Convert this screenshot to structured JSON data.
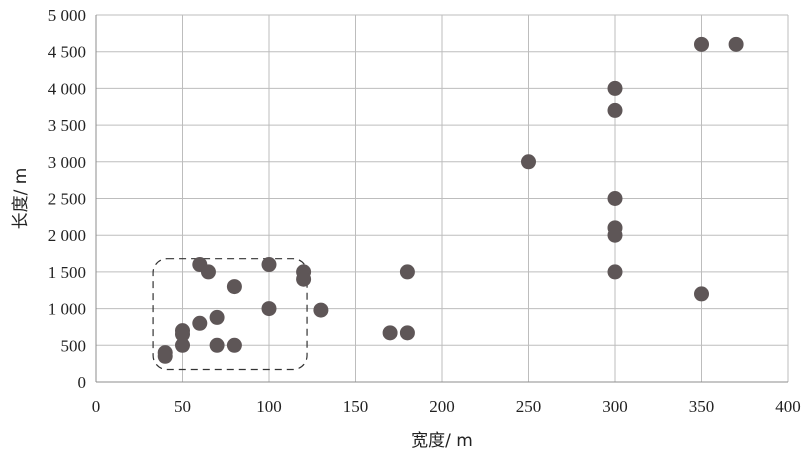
{
  "chart_data": {
    "type": "scatter",
    "title": "",
    "xlabel": "宽度/ m",
    "ylabel": "长度/ m",
    "xlim": [
      0,
      400
    ],
    "ylim": [
      0,
      5000
    ],
    "x_ticks": [
      0,
      50,
      100,
      150,
      200,
      250,
      300,
      350,
      400
    ],
    "y_ticks": [
      0,
      500,
      1000,
      1500,
      2000,
      2500,
      3000,
      3500,
      4000,
      4500,
      5000
    ],
    "x_tick_labels": [
      "0",
      "50",
      "100",
      "150",
      "200",
      "250",
      "300",
      "350",
      "400"
    ],
    "y_tick_labels": [
      "0",
      "500",
      "1 000",
      "1 500",
      "2 000",
      "2 500",
      "3 000",
      "3 500",
      "4 000",
      "4 500",
      "5 000"
    ],
    "grid": true,
    "legend": "none",
    "point_color": "#5e5657",
    "series": [
      {
        "points": [
          {
            "x": 40,
            "y": 400
          },
          {
            "x": 40,
            "y": 350
          },
          {
            "x": 50,
            "y": 700
          },
          {
            "x": 50,
            "y": 650
          },
          {
            "x": 50,
            "y": 500
          },
          {
            "x": 60,
            "y": 1600
          },
          {
            "x": 60,
            "y": 800
          },
          {
            "x": 65,
            "y": 1500
          },
          {
            "x": 70,
            "y": 880
          },
          {
            "x": 70,
            "y": 500
          },
          {
            "x": 80,
            "y": 1300
          },
          {
            "x": 80,
            "y": 500
          },
          {
            "x": 100,
            "y": 1600
          },
          {
            "x": 100,
            "y": 1000
          },
          {
            "x": 120,
            "y": 1500
          },
          {
            "x": 120,
            "y": 1400
          },
          {
            "x": 130,
            "y": 980
          },
          {
            "x": 170,
            "y": 670
          },
          {
            "x": 180,
            "y": 1500
          },
          {
            "x": 180,
            "y": 670
          },
          {
            "x": 250,
            "y": 3000
          },
          {
            "x": 300,
            "y": 4000
          },
          {
            "x": 300,
            "y": 3700
          },
          {
            "x": 300,
            "y": 2500
          },
          {
            "x": 300,
            "y": 2100
          },
          {
            "x": 300,
            "y": 2000
          },
          {
            "x": 300,
            "y": 1500
          },
          {
            "x": 350,
            "y": 4600
          },
          {
            "x": 370,
            "y": 4600
          },
          {
            "x": 350,
            "y": 1200
          }
        ]
      }
    ],
    "annotations": [
      {
        "type": "dashed-rectangle",
        "x_range": [
          33,
          122
        ],
        "y_range": [
          170,
          1680
        ]
      }
    ]
  }
}
